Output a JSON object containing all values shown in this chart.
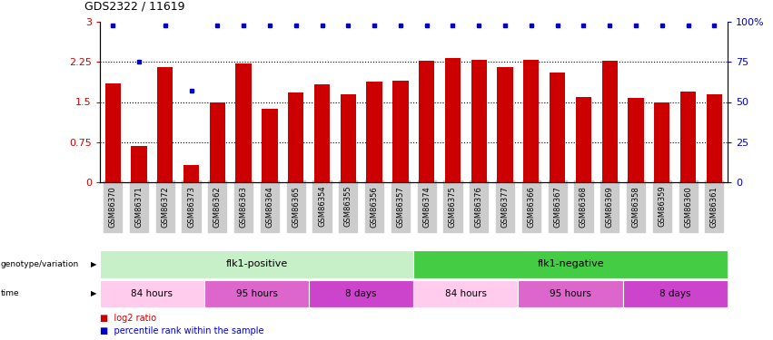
{
  "title": "GDS2322 / 11619",
  "samples": [
    "GSM86370",
    "GSM86371",
    "GSM86372",
    "GSM86373",
    "GSM86362",
    "GSM86363",
    "GSM86364",
    "GSM86365",
    "GSM86354",
    "GSM86355",
    "GSM86356",
    "GSM86357",
    "GSM86374",
    "GSM86375",
    "GSM86376",
    "GSM86377",
    "GSM86366",
    "GSM86367",
    "GSM86368",
    "GSM86369",
    "GSM86358",
    "GSM86359",
    "GSM86360",
    "GSM86361"
  ],
  "log2_ratio": [
    1.85,
    0.68,
    2.15,
    0.32,
    1.5,
    2.22,
    1.38,
    1.68,
    1.83,
    1.65,
    1.88,
    1.9,
    2.28,
    2.32,
    2.3,
    2.15,
    2.3,
    2.05,
    1.6,
    2.28,
    1.58,
    1.5,
    1.7,
    1.65
  ],
  "percentile": [
    98,
    75,
    98,
    57,
    98,
    98,
    98,
    98,
    98,
    98,
    98,
    98,
    98,
    98,
    98,
    98,
    98,
    98,
    98,
    98,
    98,
    98,
    98,
    98
  ],
  "bar_color": "#cc0000",
  "dot_color": "#0000cc",
  "ylim_left": [
    0,
    3
  ],
  "ylim_right": [
    0,
    100
  ],
  "yticks_left": [
    0,
    0.75,
    1.5,
    2.25,
    3
  ],
  "yticks_right": [
    0,
    25,
    50,
    75,
    100
  ],
  "ytick_labels_left": [
    "0",
    "0.75",
    "1.5",
    "2.25",
    "3"
  ],
  "ytick_labels_right": [
    "0",
    "25",
    "50",
    "75",
    "100%"
  ],
  "hlines": [
    0.75,
    1.5,
    2.25
  ],
  "genotype_groups": [
    {
      "label": "flk1-positive",
      "start": 0,
      "end": 12,
      "color": "#c8f0c8"
    },
    {
      "label": "flk1-negative",
      "start": 12,
      "end": 24,
      "color": "#44cc44"
    }
  ],
  "time_groups": [
    {
      "label": "84 hours",
      "start": 0,
      "end": 4,
      "color": "#ffccee"
    },
    {
      "label": "95 hours",
      "start": 4,
      "end": 8,
      "color": "#dd66cc"
    },
    {
      "label": "8 days",
      "start": 8,
      "end": 12,
      "color": "#cc44cc"
    },
    {
      "label": "84 hours",
      "start": 12,
      "end": 16,
      "color": "#ffccee"
    },
    {
      "label": "95 hours",
      "start": 16,
      "end": 20,
      "color": "#dd66cc"
    },
    {
      "label": "8 days",
      "start": 20,
      "end": 24,
      "color": "#cc44cc"
    }
  ],
  "background_color": "#ffffff",
  "tick_bg_color": "#cccccc",
  "geno_label": "genotype/variation",
  "time_label": "time",
  "legend1": "log2 ratio",
  "legend2": "percentile rank within the sample"
}
